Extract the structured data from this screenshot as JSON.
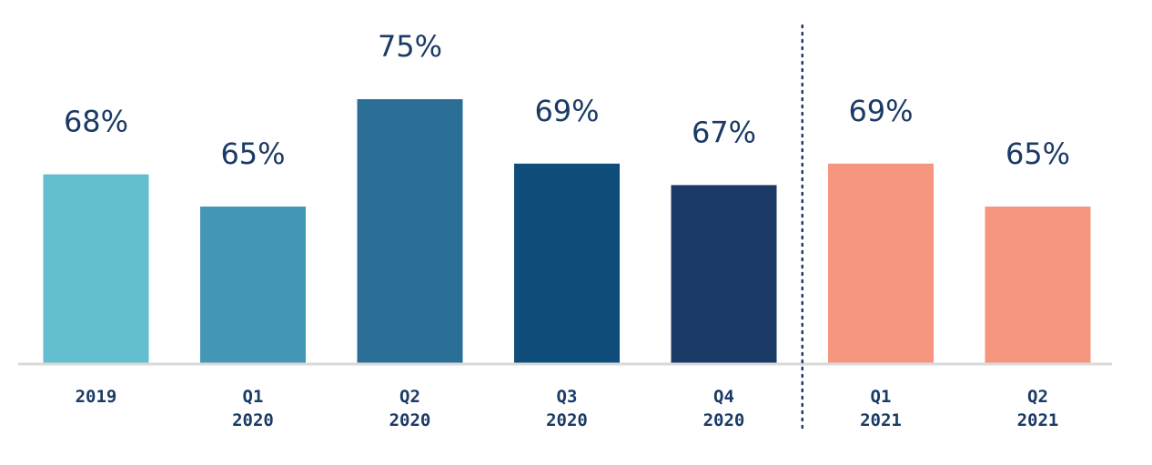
{
  "chart_data": {
    "type": "bar",
    "categories": [
      [
        "2019"
      ],
      [
        "Q1",
        "2020"
      ],
      [
        "Q2",
        "2020"
      ],
      [
        "Q3",
        "2020"
      ],
      [
        "Q4",
        "2020"
      ],
      [
        "Q1",
        "2021"
      ],
      [
        "Q2",
        "2021"
      ]
    ],
    "values": [
      68,
      65,
      75,
      69,
      67,
      69,
      65
    ],
    "value_labels": [
      "68%",
      "65%",
      "75%",
      "69%",
      "67%",
      "69%",
      "65%"
    ],
    "bar_colors": [
      "#63bfd0",
      "#4497b6",
      "#2b6f97",
      "#0f4d7a",
      "#1b3a66",
      "#f6967e",
      "#f6967e"
    ],
    "label_color": "#1b3a66",
    "separator": "dotted vertical line between Q4 2020 and Q1 2021",
    "axis_color": "#d9d9d9",
    "grid": false,
    "legend": "none"
  }
}
